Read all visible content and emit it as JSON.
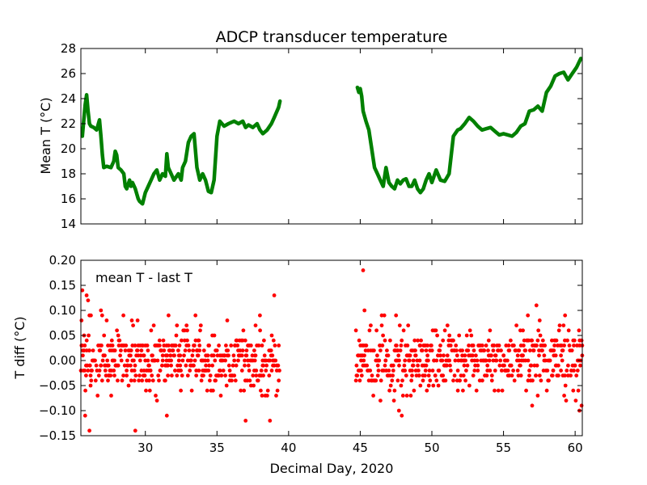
{
  "chart_data": [
    {
      "type": "line",
      "title": "ADCP transducer temperature",
      "xlabel": "",
      "ylabel": "Mean T (°C)",
      "xlim": [
        25.5,
        60.5
      ],
      "ylim": [
        14,
        28
      ],
      "yticks": [
        "14",
        "16",
        "18",
        "20",
        "22",
        "24",
        "26",
        "28"
      ],
      "grid": false,
      "series": [
        {
          "color": "#008000",
          "x": [
            25.6,
            25.8,
            25.9,
            26.0,
            26.1,
            26.2,
            26.4,
            26.6,
            26.8,
            26.9,
            27.0,
            27.1,
            27.3,
            27.6,
            27.8,
            27.9,
            28.0,
            28.1,
            28.3,
            28.5,
            28.6,
            28.7,
            28.9,
            29.0,
            29.1,
            29.3,
            29.5,
            29.6,
            29.8,
            30.0,
            30.2,
            30.4,
            30.6,
            30.8,
            31.0,
            31.2,
            31.4,
            31.5,
            31.6,
            31.8,
            32.0,
            32.3,
            32.5,
            32.6,
            32.8,
            33.0,
            33.2,
            33.4,
            33.6,
            33.8,
            34.0,
            34.2,
            34.4,
            34.6,
            34.8,
            35.0,
            35.2,
            35.5,
            35.8,
            36.0,
            36.2,
            36.5,
            36.8,
            37.0,
            37.2,
            37.5,
            37.8,
            38.0,
            38.2,
            38.5,
            38.8,
            39.0,
            39.3,
            39.4
          ],
          "y": [
            21.0,
            23.5,
            24.3,
            23.0,
            22.0,
            21.8,
            21.7,
            21.5,
            22.3,
            21.0,
            19.5,
            18.5,
            18.6,
            18.5,
            19.0,
            19.8,
            19.5,
            18.5,
            18.3,
            18.0,
            17.0,
            16.8,
            17.5,
            17.0,
            17.3,
            16.8,
            16.0,
            15.8,
            15.6,
            16.5,
            17.0,
            17.5,
            18.0,
            18.3,
            17.5,
            18.0,
            17.8,
            19.6,
            18.5,
            18.0,
            17.5,
            18.0,
            17.5,
            18.5,
            19.0,
            20.5,
            21.0,
            21.2,
            18.5,
            17.5,
            18.0,
            17.5,
            16.6,
            16.5,
            17.5,
            21.0,
            22.2,
            21.8,
            22.0,
            22.1,
            22.2,
            22.0,
            22.2,
            21.7,
            21.9,
            21.7,
            22.0,
            21.5,
            21.2,
            21.5,
            22.0,
            22.5,
            23.3,
            23.8
          ]
        },
        {
          "color": "#008000",
          "x": [
            44.8,
            44.9,
            45.0,
            45.1,
            45.2,
            45.4,
            45.6,
            45.8,
            46.0,
            46.2,
            46.4,
            46.6,
            46.8,
            47.0,
            47.2,
            47.4,
            47.6,
            47.8,
            48.0,
            48.2,
            48.4,
            48.6,
            48.8,
            49.0,
            49.2,
            49.4,
            49.6,
            49.8,
            50.0,
            50.3,
            50.6,
            50.9,
            51.2,
            51.5,
            51.8,
            52.0,
            52.3,
            52.6,
            52.9,
            53.2,
            53.5,
            53.8,
            54.1,
            54.4,
            54.7,
            55.0,
            55.3,
            55.6,
            55.9,
            56.2,
            56.5,
            56.8,
            57.1,
            57.4,
            57.7,
            58.0,
            58.3,
            58.6,
            58.9,
            59.2,
            59.5,
            59.8,
            60.1,
            60.4
          ],
          "y": [
            24.9,
            24.5,
            24.8,
            24.2,
            23.0,
            22.2,
            21.5,
            20.0,
            18.5,
            18.0,
            17.5,
            17.0,
            18.5,
            17.3,
            17.0,
            16.8,
            17.5,
            17.2,
            17.5,
            17.6,
            17.0,
            17.0,
            17.5,
            16.8,
            16.5,
            16.8,
            17.5,
            18.0,
            17.3,
            18.3,
            17.5,
            17.4,
            18.0,
            21.0,
            21.5,
            21.6,
            22.0,
            22.5,
            22.2,
            21.8,
            21.5,
            21.6,
            21.7,
            21.4,
            21.1,
            21.2,
            21.1,
            21.0,
            21.3,
            21.8,
            22.0,
            23.0,
            23.1,
            23.4,
            23.0,
            24.5,
            25.0,
            25.8,
            26.0,
            26.1,
            25.5,
            26.0,
            26.5,
            27.2
          ]
        }
      ]
    },
    {
      "type": "scatter",
      "title": "",
      "xlabel": "Decimal Day, 2020",
      "ylabel": "T diff (°C)",
      "xlim": [
        25.5,
        60.5
      ],
      "ylim": [
        -0.15,
        0.2
      ],
      "xticks": [
        "30",
        "35",
        "40",
        "45",
        "50",
        "55",
        "60"
      ],
      "yticks": [
        "−0.15",
        "−0.10",
        "−0.05",
        "0.00",
        "0.05",
        "0.10",
        "0.15",
        "0.20"
      ],
      "annotation": "mean T - last T",
      "grid": false,
      "series": [
        {
          "color": "#ff0000",
          "description_ranges": [
            [
              25.5,
              39.4
            ],
            [
              44.7,
              60.5
            ]
          ],
          "values_quantized_step": 0.01,
          "core_range": [
            -0.04,
            0.04
          ],
          "outliers": [
            [
              25.6,
              0.14
            ],
            [
              25.9,
              0.13
            ],
            [
              26.0,
              0.12
            ],
            [
              26.1,
              0.09
            ],
            [
              26.2,
              0.09
            ],
            [
              26.1,
              -0.14
            ],
            [
              25.8,
              -0.11
            ],
            [
              26.9,
              0.1
            ],
            [
              29.3,
              -0.14
            ],
            [
              31.5,
              -0.11
            ],
            [
              33.5,
              0.09
            ],
            [
              37.0,
              -0.12
            ],
            [
              38.0,
              0.09
            ],
            [
              38.7,
              -0.12
            ],
            [
              39.0,
              0.13
            ],
            [
              45.2,
              0.18
            ],
            [
              45.3,
              0.1
            ],
            [
              46.5,
              0.09
            ],
            [
              47.5,
              0.09
            ],
            [
              47.7,
              -0.1
            ],
            [
              47.9,
              -0.11
            ],
            [
              57.3,
              0.11
            ],
            [
              57.0,
              -0.09
            ],
            [
              60.3,
              -0.1
            ],
            [
              59.3,
              0.09
            ],
            [
              56.7,
              0.09
            ]
          ]
        }
      ]
    }
  ]
}
